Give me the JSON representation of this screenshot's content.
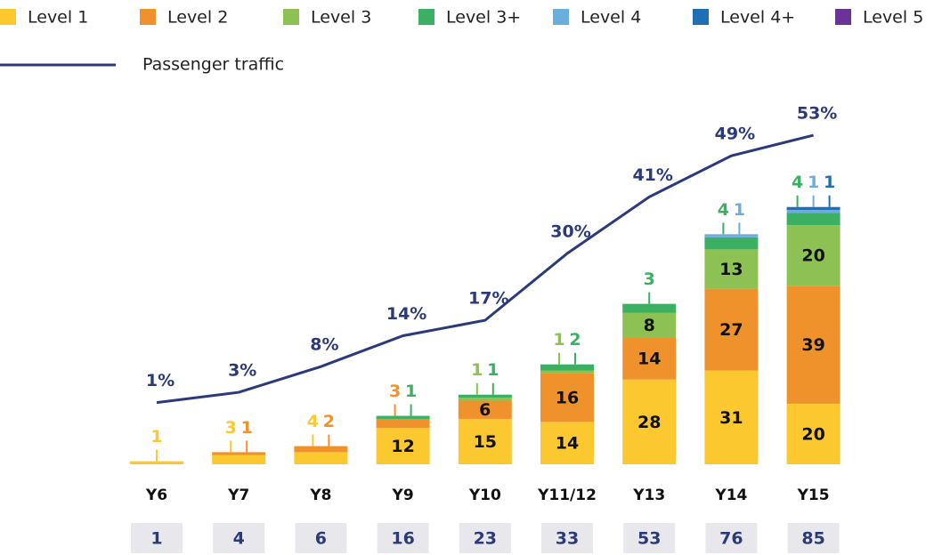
{
  "chart_data": {
    "type": "bar",
    "categories": [
      "Y6",
      "Y7",
      "Y8",
      "Y9",
      "Y10",
      "Y11/12",
      "Y13",
      "Y14",
      "Y15"
    ],
    "series": [
      {
        "name": "Level 1",
        "color": "#fcc830",
        "values": [
          1,
          3,
          4,
          12,
          15,
          14,
          28,
          31,
          20
        ]
      },
      {
        "name": "Level 2",
        "color": "#f0922b",
        "values": [
          null,
          1,
          2,
          3,
          6,
          16,
          14,
          27,
          39
        ]
      },
      {
        "name": "Level 3",
        "color": "#8dc153",
        "values": [
          null,
          null,
          null,
          null,
          1,
          1,
          8,
          13,
          20
        ]
      },
      {
        "name": "Level 3+",
        "color": "#3bb062",
        "values": [
          null,
          null,
          null,
          1,
          1,
          2,
          3,
          4,
          4
        ]
      },
      {
        "name": "Level 4",
        "color": "#6aaee0",
        "values": [
          null,
          null,
          null,
          null,
          null,
          null,
          null,
          1,
          1
        ]
      },
      {
        "name": "Level 4+",
        "color": "#1f6fb5",
        "values": [
          null,
          null,
          null,
          null,
          null,
          null,
          null,
          null,
          1
        ]
      },
      {
        "name": "Level 5",
        "color": "#6a3398",
        "values": [
          null,
          null,
          null,
          null,
          null,
          null,
          null,
          null,
          null
        ]
      },
      {
        "name": "Passenger traffic",
        "type": "line",
        "axis": "y2",
        "color": "#2b3a7a",
        "values": [
          1,
          3,
          8,
          14,
          17,
          30,
          41,
          49,
          53
        ],
        "value_labels": [
          "1%",
          "3%",
          "8%",
          "14%",
          "17%",
          "30%",
          "41%",
          "49%",
          "53%"
        ]
      }
    ],
    "totals": [
      1,
      4,
      6,
      16,
      23,
      33,
      53,
      76,
      85
    ],
    "ylim": [
      0,
      124
    ],
    "y2lim": [
      -11,
      62
    ]
  }
}
